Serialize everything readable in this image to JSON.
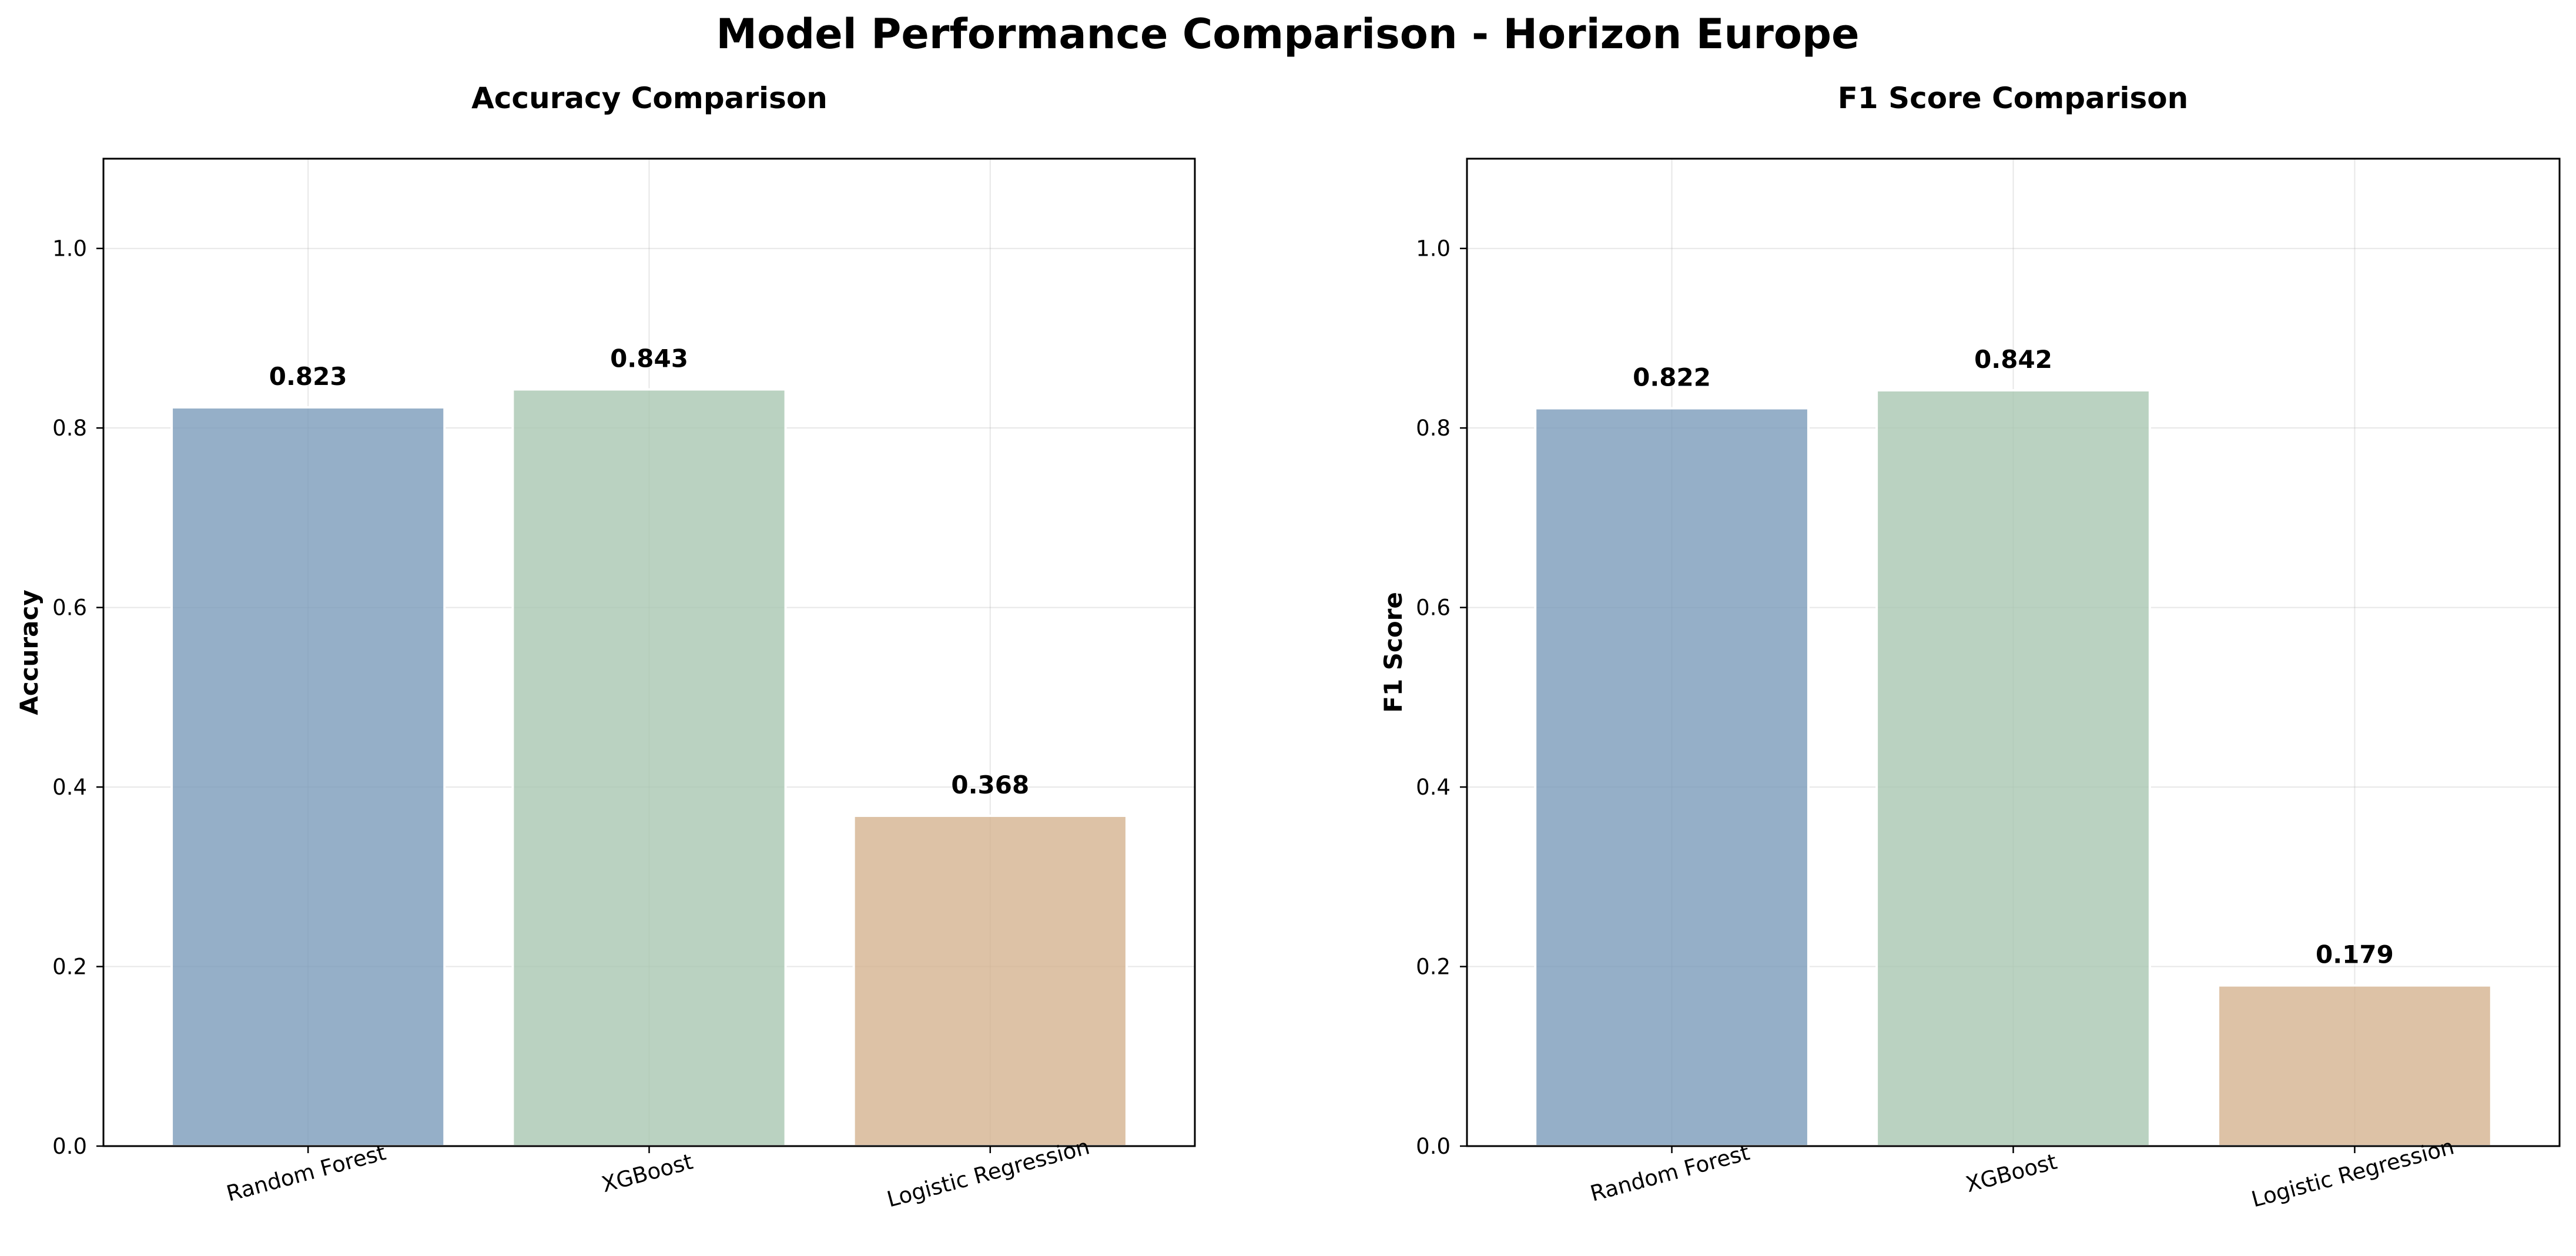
{
  "figure": {
    "title": "Model Performance Comparison - Horizon Europe"
  },
  "chart_data": [
    {
      "type": "bar",
      "title": "Accuracy Comparison",
      "xlabel": "",
      "ylabel": "Accuracy",
      "categories": [
        "Random Forest",
        "XGBoost",
        "Logistic Regression"
      ],
      "values": [
        0.823,
        0.843,
        0.368
      ],
      "value_labels": [
        "0.823",
        "0.843",
        "0.368"
      ],
      "colors": [
        "#7b9bba",
        "#a9c7b1",
        "#d4b390"
      ],
      "ylim": [
        0,
        1.1
      ],
      "yticks": [
        0.0,
        0.2,
        0.4,
        0.6,
        0.8,
        1.0
      ],
      "ytick_labels": [
        "0.0",
        "0.2",
        "0.4",
        "0.6",
        "0.8",
        "1.0"
      ],
      "grid": true,
      "xtick_rotation_deg": 15
    },
    {
      "type": "bar",
      "title": "F1 Score Comparison",
      "xlabel": "",
      "ylabel": "F1 Score",
      "categories": [
        "Random Forest",
        "XGBoost",
        "Logistic Regression"
      ],
      "values": [
        0.822,
        0.842,
        0.179
      ],
      "value_labels": [
        "0.822",
        "0.842",
        "0.179"
      ],
      "colors": [
        "#7b9bba",
        "#a9c7b1",
        "#d4b390"
      ],
      "ylim": [
        0,
        1.1
      ],
      "yticks": [
        0.0,
        0.2,
        0.4,
        0.6,
        0.8,
        1.0
      ],
      "ytick_labels": [
        "0.0",
        "0.2",
        "0.4",
        "0.6",
        "0.8",
        "1.0"
      ],
      "grid": true,
      "xtick_rotation_deg": 15
    }
  ]
}
